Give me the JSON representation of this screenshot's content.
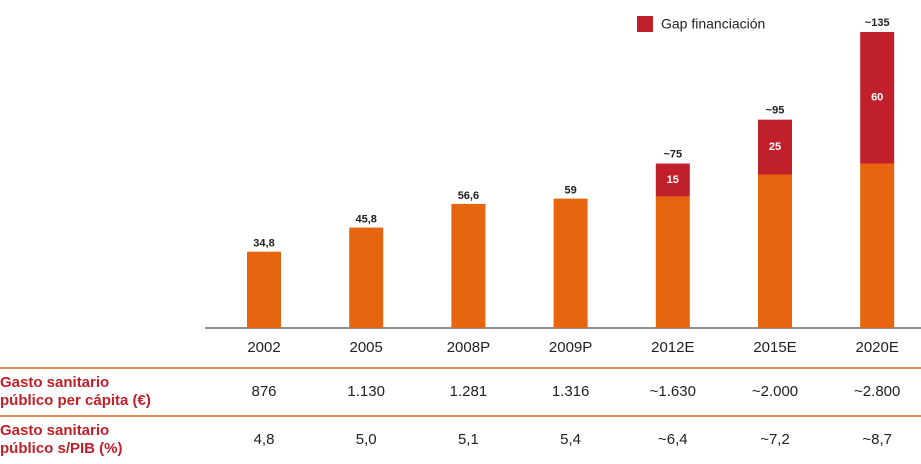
{
  "chart_data": {
    "type": "stacked_bar",
    "categories": [
      "2002",
      "2005",
      "2008P",
      "2009P",
      "2012E",
      "2015E",
      "2020E"
    ],
    "series": [
      {
        "color": "#e8650f",
        "values": [
          34.8,
          45.8,
          56.6,
          59,
          60,
          70,
          75
        ],
        "value_labels": [
          "34,8",
          "45,8",
          "56,6",
          "59",
          null,
          null,
          null
        ]
      },
      {
        "name": "Gap financiación",
        "color": "#c0202a",
        "values": [
          null,
          null,
          null,
          null,
          15,
          25,
          60
        ],
        "value_labels": [
          null,
          null,
          null,
          null,
          "15",
          "25",
          "60"
        ]
      }
    ],
    "total_labels": [
      null,
      null,
      null,
      null,
      "~75",
      "~95",
      "~135"
    ],
    "ylim": [
      0,
      140
    ],
    "legend": "top-right"
  },
  "table": {
    "rows": [
      {
        "label": [
          "Gasto sanitario",
          "público per cápita (€)"
        ],
        "values": [
          "876",
          "1.130",
          "1.281",
          "1.316",
          "~1.630",
          "~2.000",
          "~2.800"
        ]
      },
      {
        "label": [
          "Gasto sanitario",
          "público s/PIB (%)"
        ],
        "values": [
          "4,8",
          "5,0",
          "5,1",
          "5,4",
          "~6,4",
          "~7,2",
          "~8,7"
        ]
      }
    ]
  }
}
